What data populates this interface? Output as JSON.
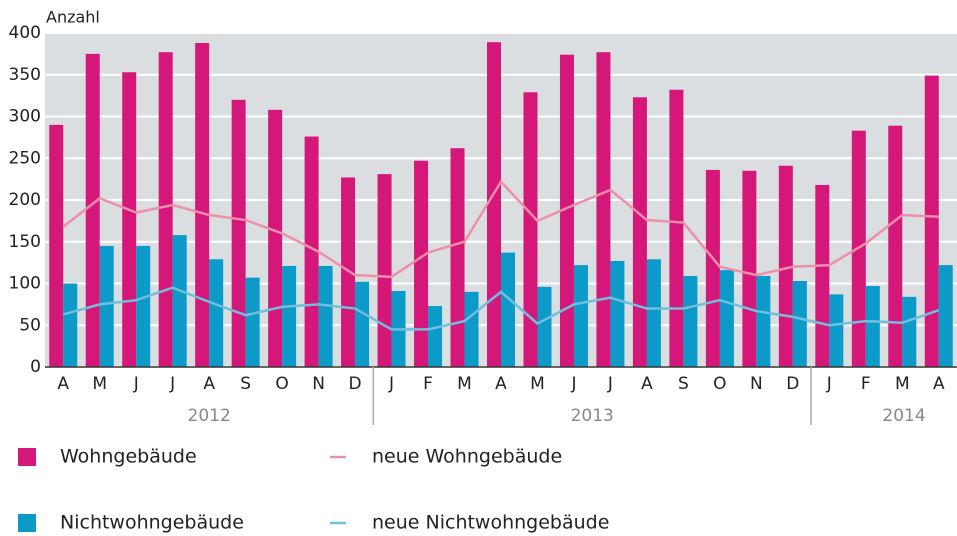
{
  "chart_data": {
    "type": "bar",
    "y_label": "Anzahl",
    "categories": [
      "A",
      "M",
      "J",
      "J",
      "A",
      "S",
      "O",
      "N",
      "D",
      "J",
      "F",
      "M",
      "A",
      "M",
      "J",
      "J",
      "A",
      "S",
      "O",
      "N",
      "D",
      "J",
      "F",
      "M",
      "A"
    ],
    "groups": [
      {
        "label": "2012",
        "size": 9
      },
      {
        "label": "2013",
        "size": 12
      },
      {
        "label": "2014",
        "size": 4
      }
    ],
    "series": [
      {
        "name": "Wohngebäude",
        "type": "bar",
        "color": "#d6177a",
        "values": [
          290,
          375,
          353,
          377,
          388,
          320,
          308,
          276,
          227,
          231,
          247,
          262,
          389,
          329,
          374,
          377,
          323,
          332,
          236,
          235,
          241,
          218,
          283,
          289,
          349
        ]
      },
      {
        "name": "neue Wohngebäude",
        "type": "line",
        "color": "#ee8fa9",
        "values": [
          168,
          202,
          185,
          194,
          182,
          176,
          160,
          138,
          110,
          108,
          137,
          150,
          222,
          175,
          194,
          212,
          176,
          173,
          120,
          110,
          120,
          122,
          148,
          182,
          180
        ]
      },
      {
        "name": "Nichtwohngebäude",
        "type": "bar",
        "color": "#0c9ac9",
        "values": [
          100,
          145,
          145,
          158,
          129,
          107,
          121,
          121,
          102,
          91,
          73,
          90,
          137,
          96,
          122,
          127,
          129,
          109,
          116,
          109,
          103,
          87,
          97,
          84,
          122
        ]
      },
      {
        "name": "neue Nichtwohngebäude",
        "type": "line",
        "color": "#6fbfdd",
        "values": [
          63,
          75,
          80,
          95,
          78,
          62,
          72,
          75,
          70,
          45,
          45,
          55,
          90,
          52,
          75,
          83,
          70,
          70,
          80,
          67,
          60,
          50,
          55,
          53,
          68
        ]
      }
    ],
    "ylim": [
      0,
      400
    ],
    "yticks": [
      0,
      50,
      100,
      150,
      200,
      250,
      300,
      350,
      400
    ],
    "grid": true
  }
}
